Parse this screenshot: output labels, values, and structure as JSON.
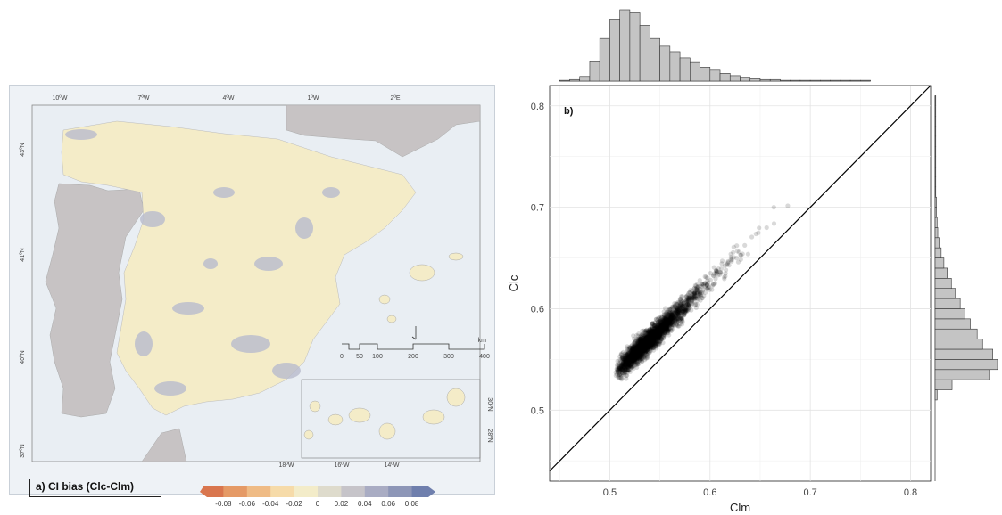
{
  "map": {
    "lon_labels": [
      "10ºW",
      "7ºW",
      "4ºW",
      "1ºW",
      "2ºE"
    ],
    "lat_labels": [
      "43ºN",
      "41ºN",
      "40ºN",
      "37ºN"
    ],
    "scale_labels": [
      "0",
      "50",
      "100",
      "200",
      "300",
      "400"
    ],
    "scale_unit": "km",
    "canary_lon_labels": [
      "18ºW",
      "16ºW",
      "14ºW"
    ],
    "canary_lat_labels": [
      "30ºN",
      "28ºN"
    ],
    "caption": "a) CI bias (Clc-Clm)",
    "legend": {
      "ticks": [
        "-0.08",
        "-0.06",
        "-0.04",
        "-0.02",
        "0",
        "0.02",
        "0.04",
        "0.06",
        "0.08"
      ],
      "colors": [
        "#d9764e",
        "#e59a66",
        "#efbb85",
        "#f6dba9",
        "#f3ecc9",
        "#dedbcc",
        "#c6c4c9",
        "#a9acc3",
        "#8d96b7",
        "#6f7fad"
      ]
    }
  },
  "chart_data": {
    "type": "scatter",
    "panel_label": "b)",
    "xlabel": "Clm",
    "ylabel": "Clc",
    "xlim": [
      0.44,
      0.82
    ],
    "ylim": [
      0.43,
      0.82
    ],
    "x_ticks": [
      0.5,
      0.6,
      0.7,
      0.8
    ],
    "y_ticks": [
      0.5,
      0.6,
      0.7,
      0.8
    ],
    "x_tick_labels": [
      "0.5",
      "0.6",
      "0.7",
      "0.8"
    ],
    "y_tick_labels": [
      "0.5",
      "0.6",
      "0.7",
      "0.8"
    ],
    "grid": true,
    "reference_line": "y = x",
    "point_cloud": {
      "x_range": [
        0.46,
        0.77
      ],
      "y_range": [
        0.51,
        0.8
      ],
      "trend": "roughly y = 0.94x + 0.06, all points above y = x",
      "point_color": "#000000",
      "point_opacity": 0.15
    },
    "x_marginal_hist": {
      "bin_start": 0.45,
      "bin_width": 0.01,
      "counts": [
        1,
        2,
        6,
        25,
        55,
        80,
        92,
        88,
        72,
        55,
        45,
        38,
        30,
        24,
        18,
        14,
        10,
        7,
        5,
        3,
        2,
        2,
        1,
        1,
        1,
        1,
        1,
        1,
        1,
        1,
        1
      ]
    },
    "y_marginal_hist": {
      "bin_start": 0.51,
      "bin_width": 0.01,
      "counts": [
        3,
        25,
        80,
        92,
        85,
        70,
        62,
        52,
        44,
        37,
        30,
        24,
        18,
        13,
        9,
        6,
        4,
        3,
        2,
        2,
        1,
        1,
        1,
        1,
        1,
        1,
        1,
        1,
        1,
        1
      ]
    }
  }
}
